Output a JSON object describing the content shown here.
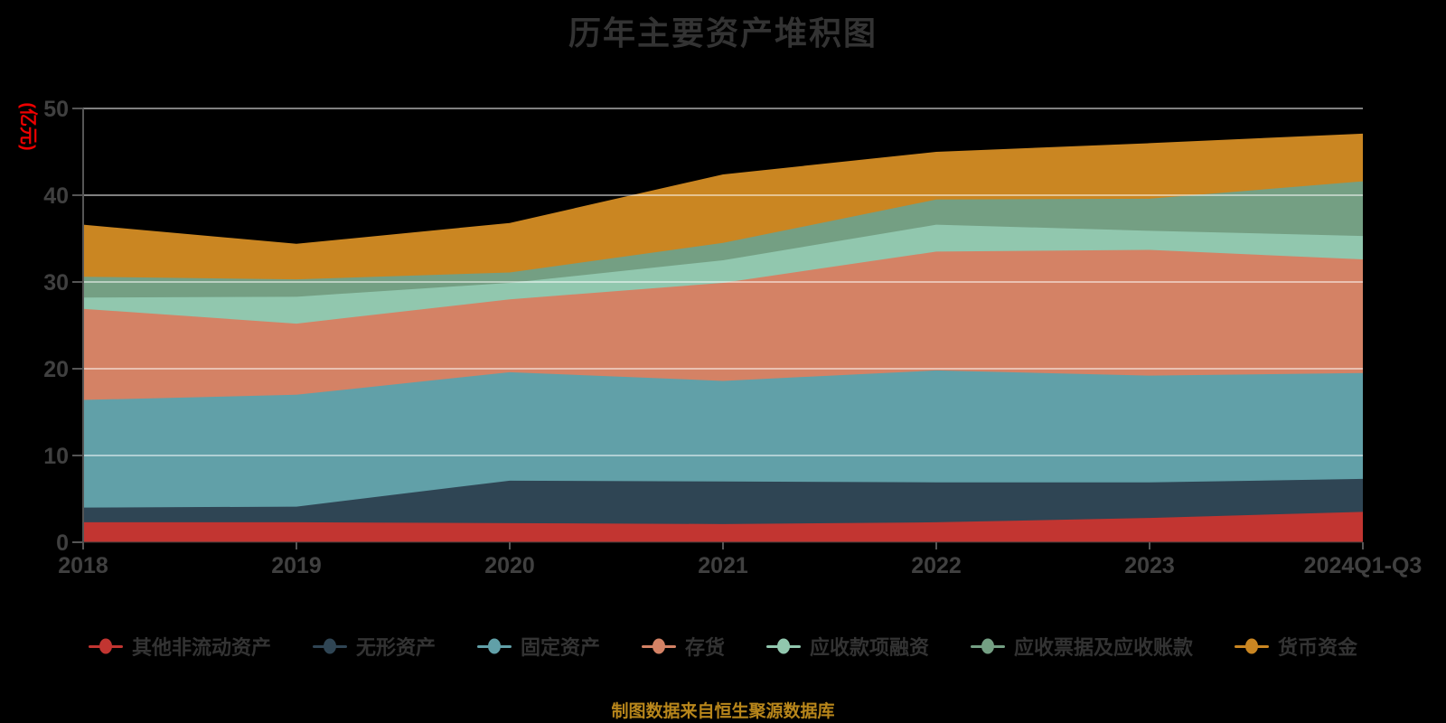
{
  "title": "历年主要资产堆积图",
  "footer": "制图数据来自恒生聚源数据库",
  "colors": {
    "background": "#000000",
    "title_text": "#333333",
    "axis_text": "#404040",
    "axis_line": "#555555",
    "gridline": "rgba(255,255,255,0.5)",
    "y_axis_name_text": "#ee0000",
    "footer_text": "#b8861b"
  },
  "chart_data": {
    "type": "area",
    "stacked": true,
    "title": "历年主要资产堆积图",
    "ylabel": "(亿元)",
    "xlabel": "",
    "categories": [
      "2018",
      "2019",
      "2020",
      "2021",
      "2022",
      "2023",
      "2024Q1-Q3"
    ],
    "ylim": [
      0,
      50
    ],
    "yticks": [
      0,
      10,
      20,
      30,
      40,
      50
    ],
    "grid": true,
    "legend_position": "bottom",
    "series": [
      {
        "name": "其他非流动资产",
        "color": "#c23531",
        "values": [
          2.3,
          2.3,
          2.2,
          2.1,
          2.3,
          2.8,
          3.5
        ]
      },
      {
        "name": "无形资产",
        "color": "#2f4554",
        "values": [
          1.7,
          1.8,
          4.9,
          4.9,
          4.6,
          4.1,
          3.8
        ]
      },
      {
        "name": "固定资产",
        "color": "#61a0a8",
        "values": [
          12.4,
          12.9,
          12.5,
          11.6,
          12.9,
          12.3,
          12.2
        ]
      },
      {
        "name": "存货",
        "color": "#d48265",
        "values": [
          10.5,
          8.2,
          8.4,
          11.3,
          13.7,
          14.5,
          13.1
        ]
      },
      {
        "name": "应收款项融资",
        "color": "#91c7ae",
        "values": [
          1.3,
          3.1,
          1.9,
          2.6,
          3.1,
          2.2,
          2.7
        ]
      },
      {
        "name": "应收票据及应收账款",
        "color": "#749f83",
        "values": [
          2.4,
          2.0,
          1.2,
          2.0,
          2.9,
          3.7,
          6.3
        ]
      },
      {
        "name": "货币资金",
        "color": "#ca8622",
        "values": [
          6.0,
          4.1,
          5.7,
          7.9,
          5.5,
          6.4,
          5.5
        ]
      }
    ]
  }
}
